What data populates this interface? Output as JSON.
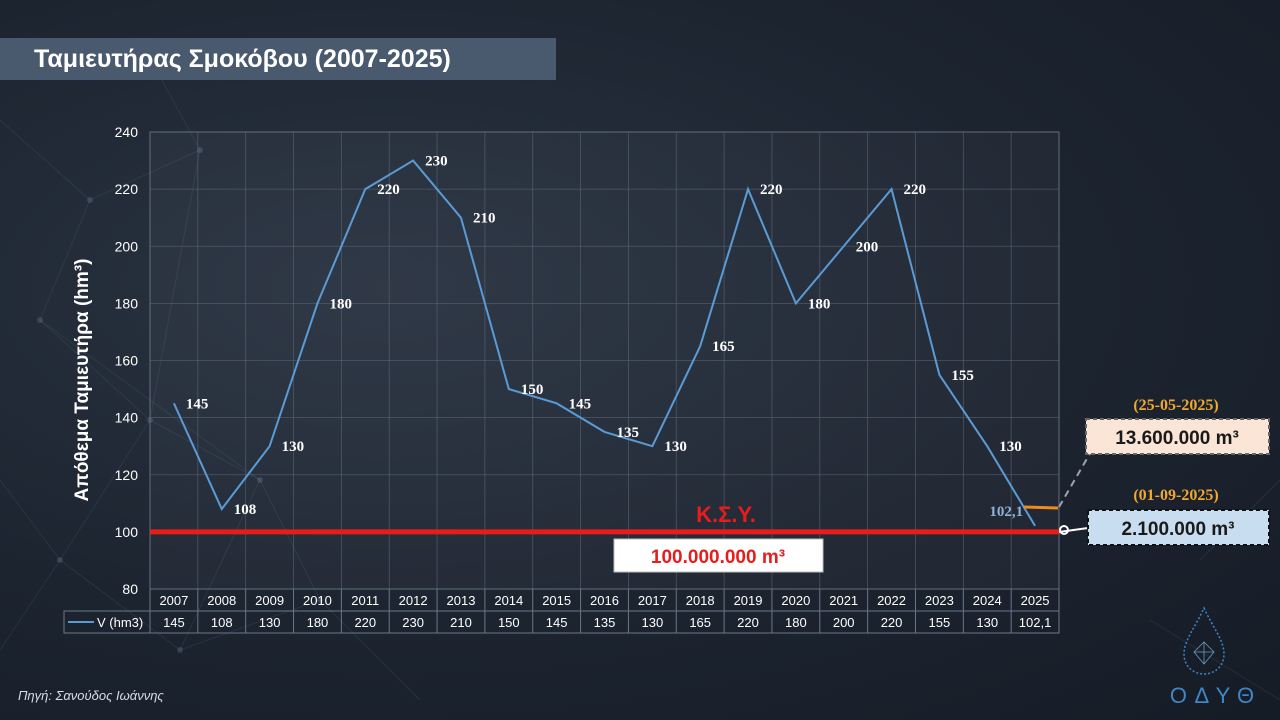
{
  "title": "Ταμιευτήρας Σμοκόβου (2007-2025)",
  "source": "Πηγή: Σανούδος Ιωάννης",
  "logo_text": "ΟΔΥΘ",
  "colors": {
    "line": "#5b9bd5",
    "threshold": "#e81c1c",
    "accent_date": "#f0a830",
    "box_peach": "#fbe5d6",
    "box_blue": "#c9ddf0"
  },
  "chart_data": {
    "type": "line",
    "title": "Ταμιευτήρας Σμοκόβου (2007-2025)",
    "ylabel": "Απόθεμα Ταμιευτήρα (hm³)",
    "ylim": [
      80,
      240
    ],
    "yticks": [
      80,
      100,
      120,
      140,
      160,
      180,
      200,
      220,
      240
    ],
    "grid": true,
    "categories": [
      "2007",
      "2008",
      "2009",
      "2010",
      "2011",
      "2012",
      "2013",
      "2014",
      "2015",
      "2016",
      "2017",
      "2018",
      "2019",
      "2020",
      "2021",
      "2022",
      "2023",
      "2024",
      "2025"
    ],
    "series": [
      {
        "name": "V (hm3)",
        "values": [
          145,
          108,
          130,
          180,
          220,
          230,
          210,
          150,
          145,
          135,
          130,
          165,
          220,
          180,
          200,
          220,
          155,
          130,
          102.1
        ],
        "labels": [
          "145",
          "108",
          "130",
          "180",
          "220",
          "230",
          "210",
          "150",
          "145",
          "135",
          "130",
          "165",
          "220",
          "180",
          "200",
          "220",
          "155",
          "130",
          "102,1"
        ]
      }
    ],
    "threshold": {
      "value": 100,
      "label": "Κ.Σ.Υ.",
      "box_label": "100.000.000 m³"
    },
    "annotations": [
      {
        "date": "(25-05-2025)",
        "value": "13.600.000 m³"
      },
      {
        "date": "(01-09-2025)",
        "value": "2.100.000 m³"
      }
    ]
  }
}
